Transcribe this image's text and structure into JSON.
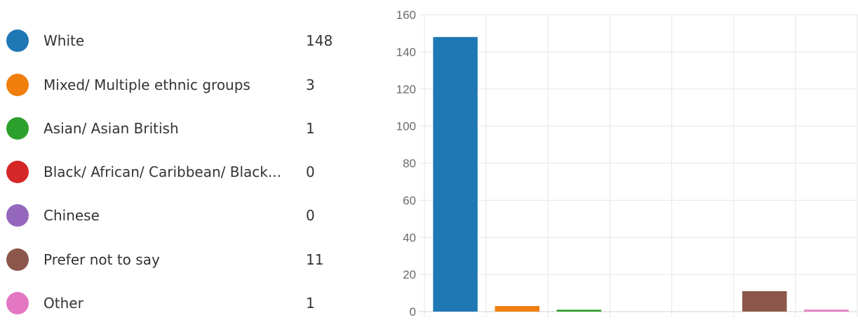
{
  "legend": {
    "items": [
      {
        "label": "White",
        "count": "148",
        "color": "#1f77b4"
      },
      {
        "label": "Mixed/ Multiple ethnic groups",
        "count": "3",
        "color": "#f07f0e"
      },
      {
        "label": "Asian/ Asian British",
        "count": "1",
        "color": "#2ca02c"
      },
      {
        "label": "Black/ African/ Caribbean/ Black...",
        "count": "0",
        "color": "#d62728"
      },
      {
        "label": "Chinese",
        "count": "0",
        "color": "#9467bd"
      },
      {
        "label": "Prefer not to say",
        "count": "11",
        "color": "#8c564b"
      },
      {
        "label": "Other",
        "count": "1",
        "color": "#e377c2"
      }
    ]
  },
  "chart_data": {
    "type": "bar",
    "categories": [
      "White",
      "Mixed/ Multiple ethnic groups",
      "Asian/ Asian British",
      "Black/ African/ Caribbean/ Black...",
      "Chinese",
      "Prefer not to say",
      "Other"
    ],
    "values": [
      148,
      3,
      1,
      0,
      0,
      11,
      1
    ],
    "colors": [
      "#1f77b4",
      "#f07f0e",
      "#2ca02c",
      "#d62728",
      "#9467bd",
      "#8c564b",
      "#e377c2"
    ],
    "ylim": [
      0,
      160
    ],
    "yticks": [
      0,
      20,
      40,
      60,
      80,
      100,
      120,
      140,
      160
    ],
    "title": "",
    "xlabel": "",
    "ylabel": "",
    "grid": true,
    "legend_placement": "left"
  }
}
